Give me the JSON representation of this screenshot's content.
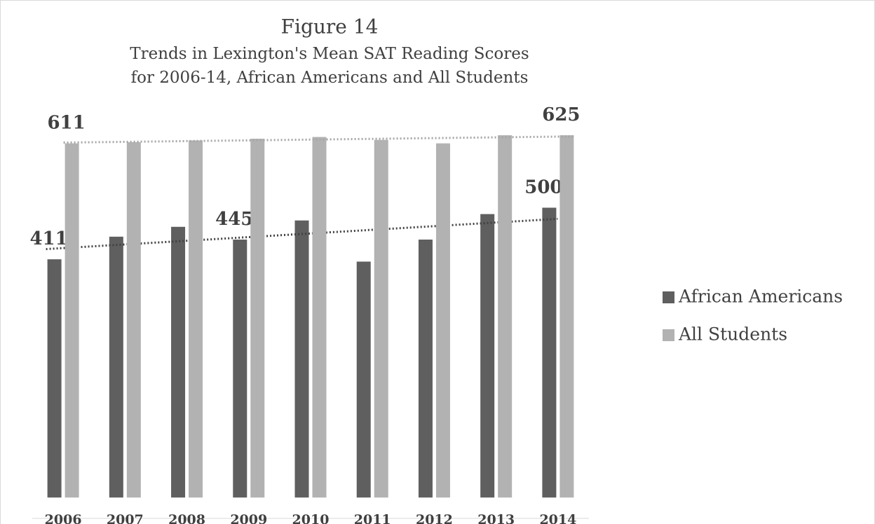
{
  "chart_data": {
    "type": "bar",
    "title": "Figure 14",
    "subtitle": [
      "Trends in Lexington's Mean SAT Reading Scores",
      "for 2006-14, African Americans and All Students"
    ],
    "categories": [
      "2006",
      "2007",
      "2008",
      "2009",
      "2010",
      "2011",
      "2012",
      "2013",
      "2014"
    ],
    "series": [
      {
        "name": "African Americans",
        "color": "#5f5f5f",
        "values": [
          411,
          450,
          467,
          445,
          478,
          407,
          445,
          489,
          500
        ],
        "value_labels": [
          "411",
          null,
          null,
          "445",
          null,
          null,
          null,
          null,
          "500"
        ]
      },
      {
        "name": "All Students",
        "color": "#b2b2b2",
        "values": [
          611,
          613,
          616,
          619,
          622,
          617,
          611,
          625,
          625
        ],
        "value_labels": [
          "611",
          null,
          null,
          null,
          null,
          null,
          null,
          null,
          "625"
        ]
      }
    ],
    "ylim": [
      -36,
      700
    ],
    "trendline": true,
    "legend": "right"
  }
}
